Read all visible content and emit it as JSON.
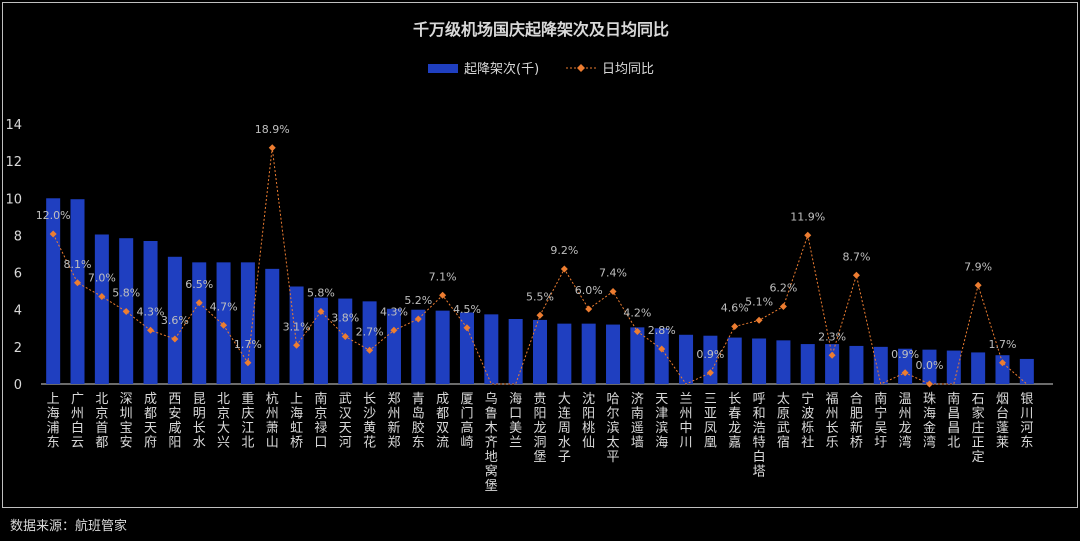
{
  "source": "数据来源：航班管家",
  "chart_data": {
    "type": "bar+line",
    "title": "千万级机场国庆起降架次及日均同比",
    "legend_position": "top",
    "colors": {
      "bar": "#1f3fc0",
      "line": "#ed7d31",
      "background": "#000000"
    },
    "ylim": [
      0,
      14
    ],
    "yticks": [
      0,
      2,
      4,
      6,
      8,
      10,
      12,
      14
    ],
    "categories": [
      "上海浦东",
      "广州白云",
      "北京首都",
      "深圳宝安",
      "成都天府",
      "西安咸阳",
      "昆明长水",
      "北京大兴",
      "重庆江北",
      "杭州萧山",
      "上海虹桥",
      "南京禄口",
      "武汉天河",
      "长沙黄花",
      "郑州新郑",
      "青岛胶东",
      "成都双流",
      "厦门高崎",
      "乌鲁木齐地窝堡",
      "海口美兰",
      "贵阳龙洞堡",
      "大连周水子",
      "沈阳桃仙",
      "哈尔滨太平",
      "济南遥墙",
      "天津滨海",
      "兰州中川",
      "三亚凤凰",
      "长春龙嘉",
      "呼和浩特白塔",
      "太原武宿",
      "宁波栎社",
      "福州长乐",
      "合肥新桥",
      "南宁吴圩",
      "温州龙湾",
      "珠海金湾",
      "南昌昌北",
      "石家庄正定",
      "烟台蓬莱",
      "银川河东"
    ],
    "series": [
      {
        "name": "起降架次(千)",
        "type": "bar",
        "values": [
          10.0,
          9.95,
          8.05,
          7.85,
          7.7,
          6.85,
          6.55,
          6.55,
          6.55,
          6.2,
          5.25,
          4.65,
          4.6,
          4.45,
          4.05,
          4.0,
          3.95,
          3.85,
          3.75,
          3.5,
          3.45,
          3.25,
          3.25,
          3.2,
          3.05,
          3.0,
          2.65,
          2.6,
          2.5,
          2.45,
          2.35,
          2.15,
          2.15,
          2.05,
          2.0,
          1.9,
          1.85,
          1.8,
          1.7,
          1.55,
          1.35
        ]
      },
      {
        "name": "日均同比",
        "type": "line",
        "values": [
          12.0,
          8.1,
          7.0,
          5.8,
          4.3,
          3.6,
          6.5,
          4.7,
          1.7,
          18.9,
          3.1,
          5.8,
          3.8,
          2.7,
          4.3,
          5.2,
          7.1,
          4.5,
          null,
          null,
          5.5,
          9.2,
          6.0,
          7.4,
          4.2,
          2.8,
          null,
          0.9,
          4.6,
          5.1,
          6.2,
          11.9,
          2.3,
          8.7,
          null,
          0.9,
          0.0,
          null,
          7.9,
          1.7,
          null
        ],
        "labels": [
          "12.0%",
          "8.1%",
          "7.0%",
          "5.8%",
          "4.3%",
          "3.6%",
          "6.5%",
          "4.7%",
          "1.7%",
          "18.9%",
          "3.1%",
          "5.8%",
          "3.8%",
          "2.7%",
          "4.3%",
          "5.2%",
          "7.1%",
          "4.5%",
          "",
          "",
          "5.5%",
          "9.2%",
          "6.0%",
          "7.4%",
          "4.2%",
          "2.8%",
          "",
          "0.9%",
          "4.6%",
          "5.1%",
          "6.2%",
          "11.9%",
          "2.3%",
          "8.7%",
          "",
          "0.9%",
          "0.0%",
          "",
          "7.9%",
          "1.7%",
          ""
        ]
      }
    ]
  }
}
